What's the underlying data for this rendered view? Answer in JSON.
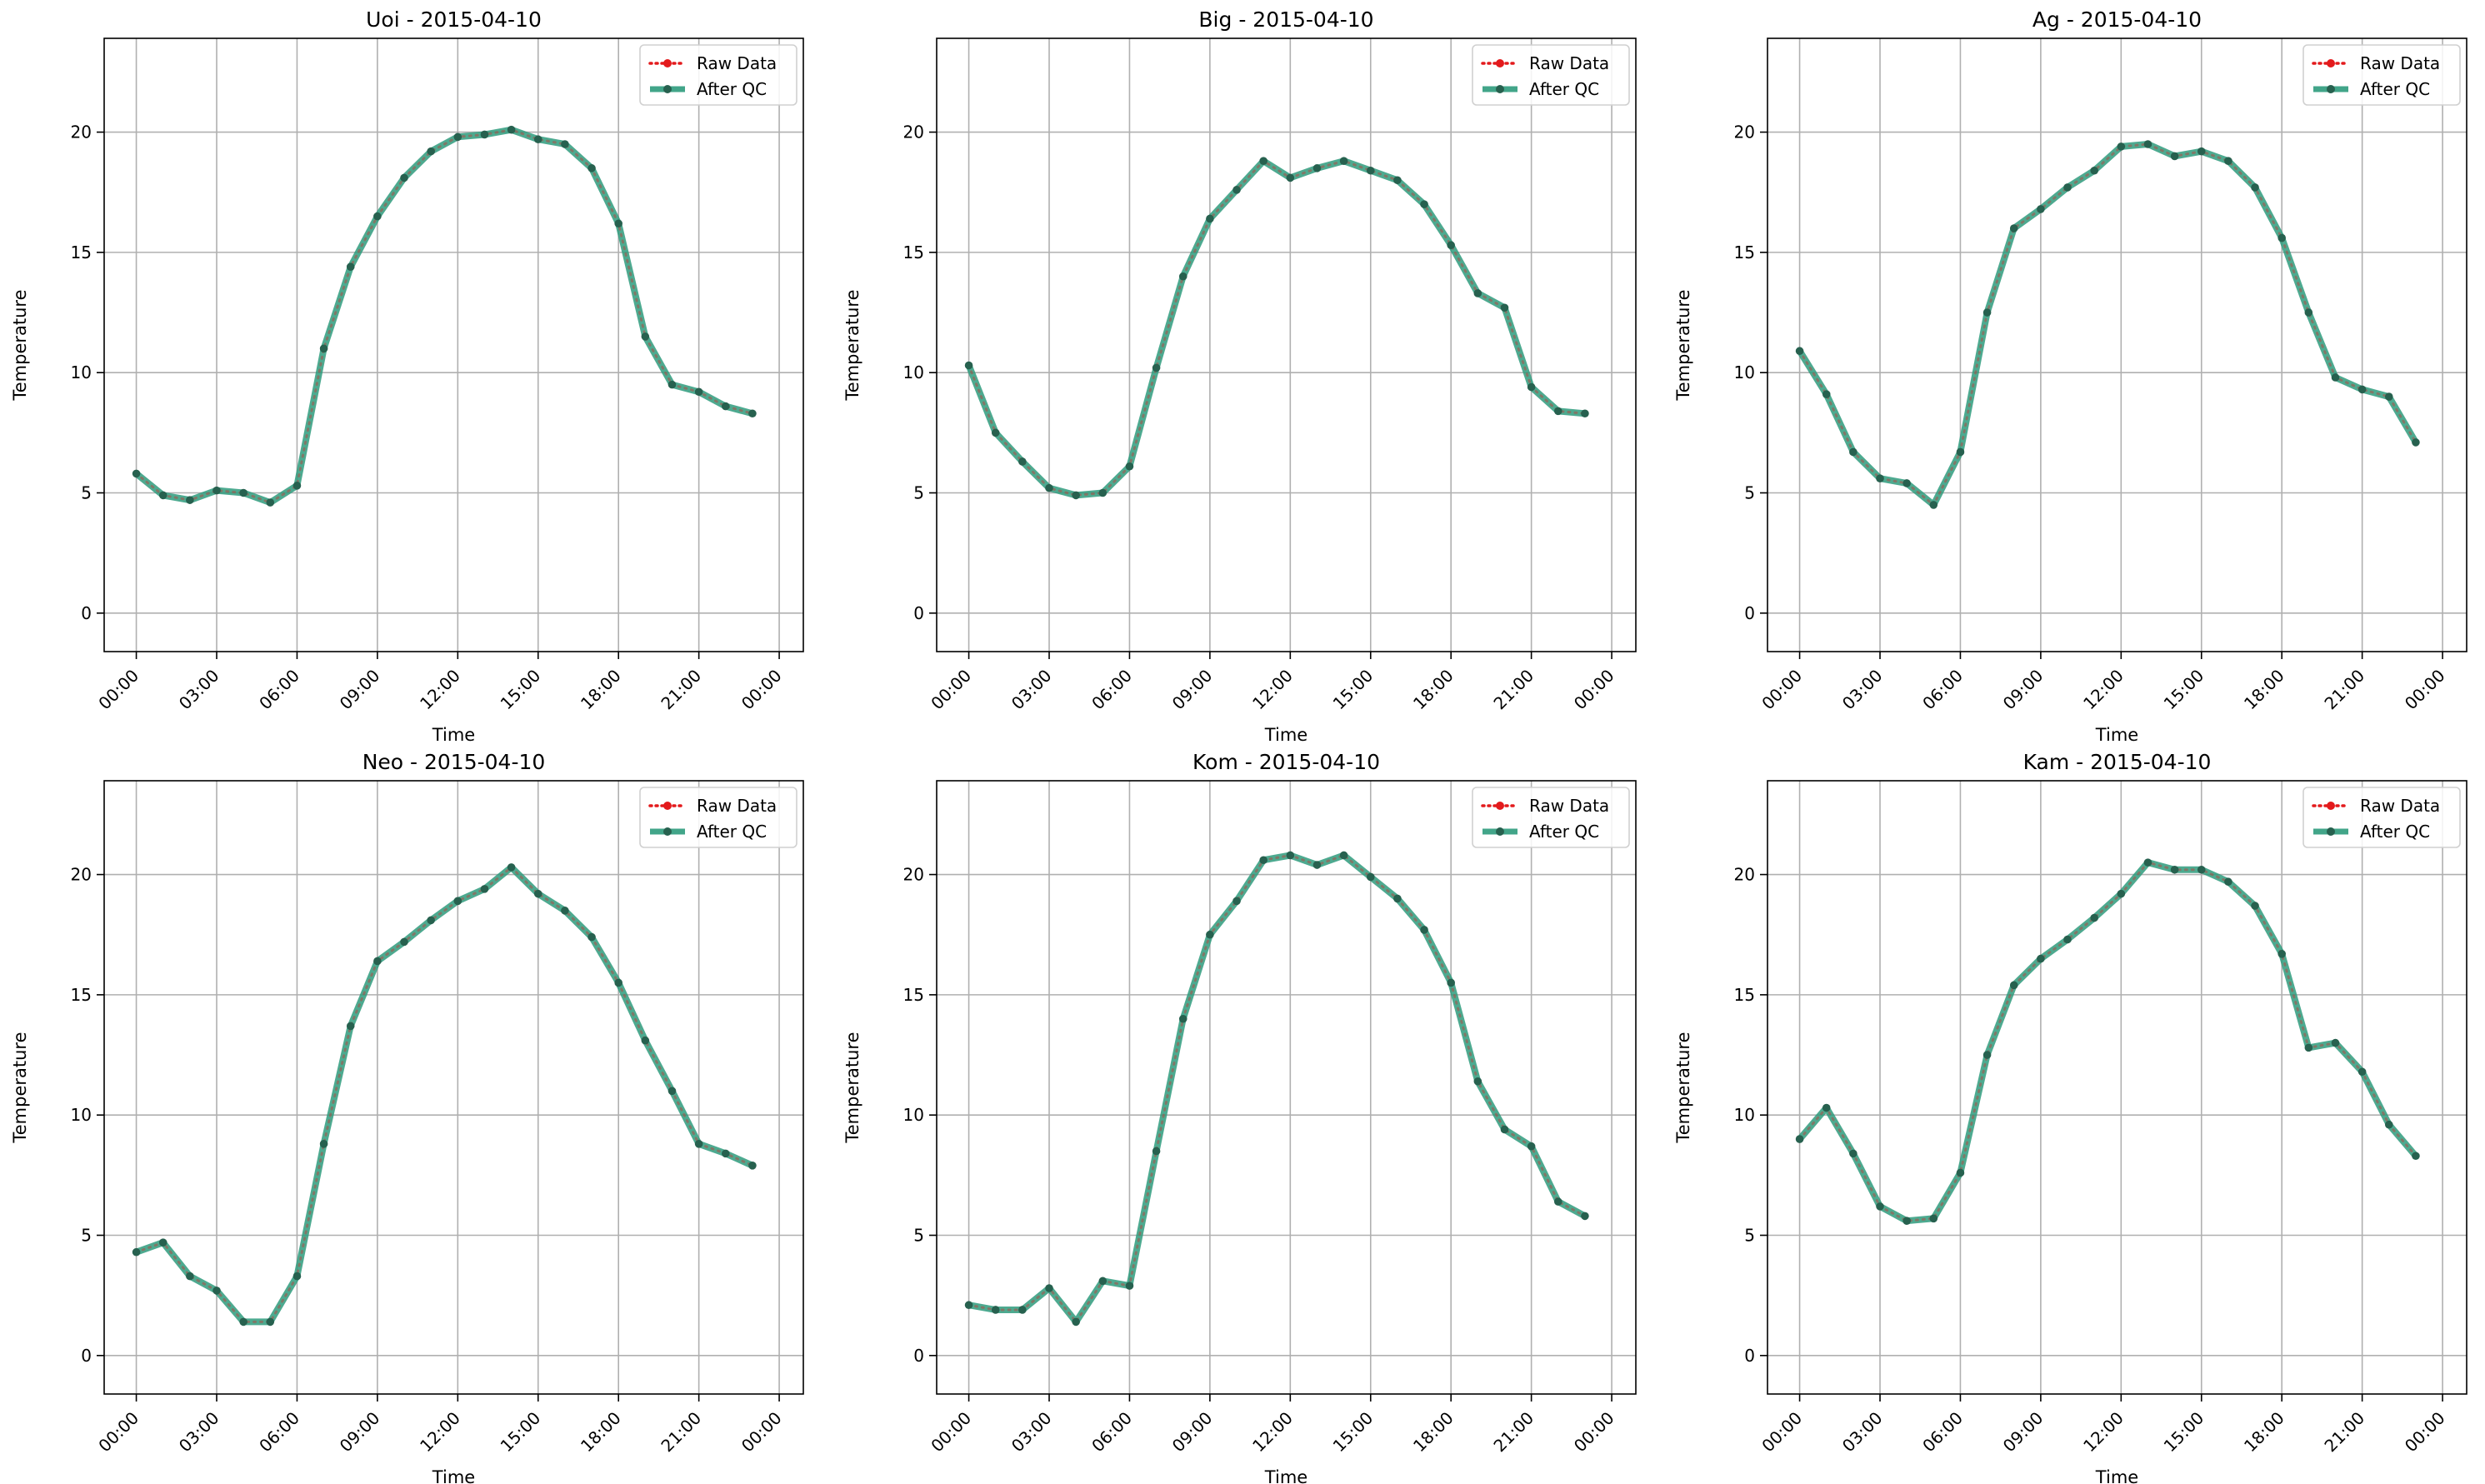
{
  "figure": {
    "legend_labels": {
      "raw": "Raw Data",
      "qc": "After QC"
    },
    "colors": {
      "raw": "#e31a1c",
      "qc": "#2e9b7c",
      "marker": "#27614f",
      "grid": "#b0b0b0"
    }
  },
  "chart_data": [
    {
      "type": "line",
      "title": "Uoi - 2015-04-10",
      "xlabel": "Time",
      "ylabel": "Temperature",
      "xlim_hours": [
        -1.2,
        24.9
      ],
      "ylim": [
        -1.6,
        23.9
      ],
      "x_ticks": [
        "00:00",
        "03:00",
        "06:00",
        "09:00",
        "12:00",
        "15:00",
        "18:00",
        "21:00",
        "00:00"
      ],
      "y_ticks": [
        0,
        5,
        10,
        15,
        20
      ],
      "grid": true,
      "legend": "upper right",
      "x_hours": [
        0,
        1,
        2,
        3,
        4,
        5,
        6,
        7,
        8,
        9,
        10,
        11,
        12,
        13,
        14,
        15,
        16,
        17,
        18,
        19,
        20,
        21,
        22,
        23
      ],
      "series": [
        {
          "name": "Raw Data",
          "values": [
            5.8,
            4.9,
            4.7,
            5.1,
            5.0,
            4.6,
            5.3,
            11.0,
            14.4,
            16.5,
            18.1,
            19.2,
            19.8,
            19.9,
            20.1,
            19.7,
            19.5,
            18.5,
            16.2,
            11.5,
            9.5,
            9.2,
            8.6,
            8.3
          ]
        },
        {
          "name": "After QC",
          "values": [
            5.8,
            4.9,
            4.7,
            5.1,
            5.0,
            4.6,
            5.3,
            11.0,
            14.4,
            16.5,
            18.1,
            19.2,
            19.8,
            19.9,
            20.1,
            19.7,
            19.5,
            18.5,
            16.2,
            11.5,
            9.5,
            9.2,
            8.6,
            8.3
          ]
        }
      ]
    },
    {
      "type": "line",
      "title": "Big - 2015-04-10",
      "xlabel": "Time",
      "ylabel": "Temperature",
      "xlim_hours": [
        -1.2,
        24.9
      ],
      "ylim": [
        -1.6,
        23.9
      ],
      "x_ticks": [
        "00:00",
        "03:00",
        "06:00",
        "09:00",
        "12:00",
        "15:00",
        "18:00",
        "21:00",
        "00:00"
      ],
      "y_ticks": [
        0,
        5,
        10,
        15,
        20
      ],
      "grid": true,
      "legend": "upper right",
      "x_hours": [
        0,
        1,
        2,
        3,
        4,
        5,
        6,
        7,
        8,
        9,
        10,
        11,
        12,
        13,
        14,
        15,
        16,
        17,
        18,
        19,
        20,
        21,
        22,
        23
      ],
      "series": [
        {
          "name": "Raw Data",
          "values": [
            10.3,
            7.5,
            6.3,
            5.2,
            4.9,
            5.0,
            6.1,
            10.2,
            14.0,
            16.4,
            17.6,
            18.8,
            18.1,
            18.5,
            18.8,
            18.4,
            18.0,
            17.0,
            15.3,
            13.3,
            12.7,
            9.4,
            8.4,
            8.3
          ]
        },
        {
          "name": "After QC",
          "values": [
            10.3,
            7.5,
            6.3,
            5.2,
            4.9,
            5.0,
            6.1,
            10.2,
            14.0,
            16.4,
            17.6,
            18.8,
            18.1,
            18.5,
            18.8,
            18.4,
            18.0,
            17.0,
            15.3,
            13.3,
            12.7,
            9.4,
            8.4,
            8.3
          ]
        }
      ]
    },
    {
      "type": "line",
      "title": "Ag - 2015-04-10",
      "xlabel": "Time",
      "ylabel": "Temperature",
      "xlim_hours": [
        -1.2,
        24.9
      ],
      "ylim": [
        -1.6,
        23.9
      ],
      "x_ticks": [
        "00:00",
        "03:00",
        "06:00",
        "09:00",
        "12:00",
        "15:00",
        "18:00",
        "21:00",
        "00:00"
      ],
      "y_ticks": [
        0,
        5,
        10,
        15,
        20
      ],
      "grid": true,
      "legend": "upper right",
      "x_hours": [
        0,
        1,
        2,
        3,
        4,
        5,
        6,
        7,
        8,
        9,
        10,
        11,
        12,
        13,
        14,
        15,
        16,
        17,
        18,
        19,
        20,
        21,
        22,
        23
      ],
      "series": [
        {
          "name": "Raw Data",
          "values": [
            10.9,
            9.1,
            6.7,
            5.6,
            5.4,
            4.5,
            6.7,
            12.5,
            16.0,
            16.8,
            17.7,
            18.4,
            19.4,
            19.5,
            19.0,
            19.2,
            18.8,
            17.7,
            15.6,
            12.5,
            9.8,
            9.3,
            9.0,
            7.1
          ]
        },
        {
          "name": "After QC",
          "values": [
            10.9,
            9.1,
            6.7,
            5.6,
            5.4,
            4.5,
            6.7,
            12.5,
            16.0,
            16.8,
            17.7,
            18.4,
            19.4,
            19.5,
            19.0,
            19.2,
            18.8,
            17.7,
            15.6,
            12.5,
            9.8,
            9.3,
            9.0,
            7.1
          ]
        }
      ]
    },
    {
      "type": "line",
      "title": "Neo - 2015-04-10",
      "xlabel": "Time",
      "ylabel": "Temperature",
      "xlim_hours": [
        -1.2,
        24.9
      ],
      "ylim": [
        -1.6,
        23.9
      ],
      "x_ticks": [
        "00:00",
        "03:00",
        "06:00",
        "09:00",
        "12:00",
        "15:00",
        "18:00",
        "21:00",
        "00:00"
      ],
      "y_ticks": [
        0,
        5,
        10,
        15,
        20
      ],
      "grid": true,
      "legend": "upper right",
      "x_hours": [
        0,
        1,
        2,
        3,
        4,
        5,
        6,
        7,
        8,
        9,
        10,
        11,
        12,
        13,
        14,
        15,
        16,
        17,
        18,
        19,
        20,
        21,
        22,
        23
      ],
      "series": [
        {
          "name": "Raw Data",
          "values": [
            4.3,
            4.7,
            3.3,
            2.7,
            1.4,
            1.4,
            3.3,
            8.8,
            13.7,
            16.4,
            17.2,
            18.1,
            18.9,
            19.4,
            20.3,
            19.2,
            18.5,
            17.4,
            15.5,
            13.1,
            11.0,
            8.8,
            8.4,
            7.9
          ]
        },
        {
          "name": "After QC",
          "values": [
            4.3,
            4.7,
            3.3,
            2.7,
            1.4,
            1.4,
            3.3,
            8.8,
            13.7,
            16.4,
            17.2,
            18.1,
            18.9,
            19.4,
            20.3,
            19.2,
            18.5,
            17.4,
            15.5,
            13.1,
            11.0,
            8.8,
            8.4,
            7.9
          ]
        }
      ]
    },
    {
      "type": "line",
      "title": "Kom - 2015-04-10",
      "xlabel": "Time",
      "ylabel": "Temperature",
      "xlim_hours": [
        -1.2,
        24.9
      ],
      "ylim": [
        -1.6,
        23.9
      ],
      "x_ticks": [
        "00:00",
        "03:00",
        "06:00",
        "09:00",
        "12:00",
        "15:00",
        "18:00",
        "21:00",
        "00:00"
      ],
      "y_ticks": [
        0,
        5,
        10,
        15,
        20
      ],
      "grid": true,
      "legend": "upper right",
      "x_hours": [
        0,
        1,
        2,
        3,
        4,
        5,
        6,
        7,
        8,
        9,
        10,
        11,
        12,
        13,
        14,
        15,
        16,
        17,
        18,
        19,
        20,
        21,
        22,
        23
      ],
      "series": [
        {
          "name": "Raw Data",
          "values": [
            2.1,
            1.9,
            1.9,
            2.8,
            1.4,
            3.1,
            2.9,
            8.5,
            14.0,
            17.5,
            18.9,
            20.6,
            20.8,
            20.4,
            20.8,
            19.9,
            19.0,
            17.7,
            15.5,
            11.4,
            9.4,
            8.7,
            6.4,
            5.8
          ]
        },
        {
          "name": "After QC",
          "values": [
            2.1,
            1.9,
            1.9,
            2.8,
            1.4,
            3.1,
            2.9,
            8.5,
            14.0,
            17.5,
            18.9,
            20.6,
            20.8,
            20.4,
            20.8,
            19.9,
            19.0,
            17.7,
            15.5,
            11.4,
            9.4,
            8.7,
            6.4,
            5.8
          ]
        }
      ]
    },
    {
      "type": "line",
      "title": "Kam - 2015-04-10",
      "xlabel": "Time",
      "ylabel": "Temperature",
      "xlim_hours": [
        -1.2,
        24.9
      ],
      "ylim": [
        -1.6,
        23.9
      ],
      "x_ticks": [
        "00:00",
        "03:00",
        "06:00",
        "09:00",
        "12:00",
        "15:00",
        "18:00",
        "21:00",
        "00:00"
      ],
      "y_ticks": [
        0,
        5,
        10,
        15,
        20
      ],
      "grid": true,
      "legend": "upper right",
      "x_hours": [
        0,
        1,
        2,
        3,
        4,
        5,
        6,
        7,
        8,
        9,
        10,
        11,
        12,
        13,
        14,
        15,
        16,
        17,
        18,
        19,
        20,
        21,
        22,
        23
      ],
      "series": [
        {
          "name": "Raw Data",
          "values": [
            9.0,
            10.3,
            8.4,
            6.2,
            5.6,
            5.7,
            7.6,
            12.5,
            15.4,
            16.5,
            17.3,
            18.2,
            19.2,
            20.5,
            20.2,
            20.2,
            19.7,
            18.7,
            16.7,
            12.8,
            13.0,
            11.8,
            9.6,
            8.3
          ]
        },
        {
          "name": "After QC",
          "values": [
            9.0,
            10.3,
            8.4,
            6.2,
            5.6,
            5.7,
            7.6,
            12.5,
            15.4,
            16.5,
            17.3,
            18.2,
            19.2,
            20.5,
            20.2,
            20.2,
            19.7,
            18.7,
            16.7,
            12.8,
            13.0,
            11.8,
            9.6,
            8.3
          ]
        }
      ]
    }
  ]
}
